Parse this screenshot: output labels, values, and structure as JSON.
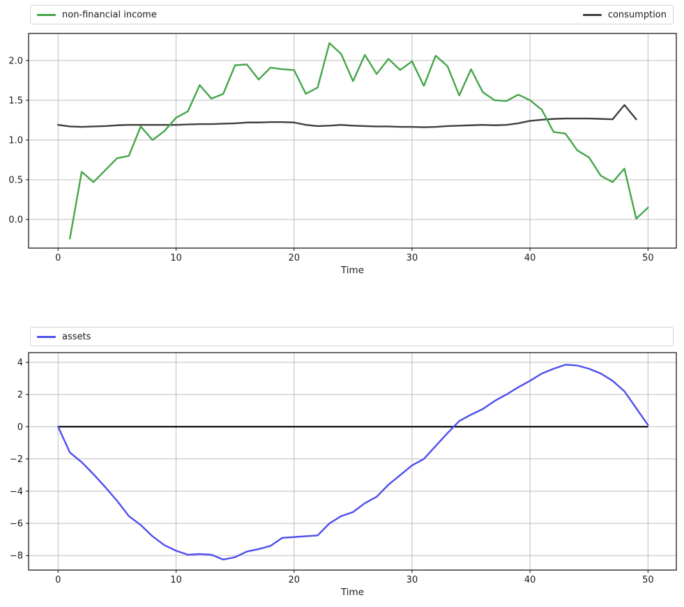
{
  "page": {
    "background": "#ffffff",
    "grid_color": "#bdbdbd",
    "spine_color": "#1a1a1a",
    "text_color": "#1a1a1a"
  },
  "legend_top": {
    "items": [
      {
        "label": "non-financial income",
        "series": "non-financial income"
      },
      {
        "label": "consumption",
        "series": "consumption"
      }
    ]
  },
  "legend_bottom": {
    "items": [
      {
        "label": "assets",
        "series": "assets"
      }
    ]
  },
  "chart_data": [
    {
      "type": "line",
      "title": "",
      "xlabel": "Time",
      "ylabel": "",
      "grid": true,
      "legend_position": "top expanded",
      "legend": [
        "non-financial income",
        "consumption"
      ],
      "xlim": [
        -2.5,
        52.4
      ],
      "ylim": [
        -0.36,
        2.34
      ],
      "xticks": {
        "values": [
          0,
          10,
          20,
          30,
          40,
          50
        ],
        "labels": [
          "0",
          "10",
          "20",
          "30",
          "40",
          "50"
        ]
      },
      "yticks": {
        "values": [
          0.0,
          0.5,
          1.0,
          1.5,
          2.0
        ],
        "labels": [
          "0.0",
          "0.5",
          "1.0",
          "1.5",
          "2.0"
        ]
      },
      "series": [
        {
          "name": "consumption",
          "color": "#3f3f3f",
          "x_start": 0,
          "x_step": 1,
          "values": [
            1.19,
            1.17,
            1.165,
            1.17,
            1.175,
            1.185,
            1.19,
            1.19,
            1.19,
            1.19,
            1.19,
            1.195,
            1.2,
            1.2,
            1.205,
            1.21,
            1.22,
            1.22,
            1.225,
            1.225,
            1.22,
            1.19,
            1.175,
            1.18,
            1.19,
            1.18,
            1.175,
            1.17,
            1.17,
            1.165,
            1.165,
            1.16,
            1.165,
            1.175,
            1.18,
            1.185,
            1.19,
            1.185,
            1.19,
            1.21,
            1.24,
            1.255,
            1.265,
            1.27,
            1.27,
            1.27,
            1.265,
            1.26,
            1.44,
            1.26
          ]
        },
        {
          "name": "non-financial income",
          "color": "#45a549",
          "x_start": 1,
          "x_step": 1,
          "values": [
            -0.24,
            0.6,
            0.47,
            0.62,
            0.77,
            0.8,
            1.17,
            1.0,
            1.11,
            1.28,
            1.36,
            1.69,
            1.52,
            1.58,
            1.94,
            1.95,
            1.76,
            1.91,
            1.89,
            1.88,
            1.58,
            1.66,
            2.22,
            2.08,
            1.74,
            2.07,
            1.83,
            2.02,
            1.88,
            1.99,
            1.68,
            2.06,
            1.93,
            1.56,
            1.89,
            1.6,
            1.5,
            1.49,
            1.57,
            1.5,
            1.38,
            1.1,
            1.08,
            0.87,
            0.78,
            0.55,
            0.47,
            0.64,
            0.01,
            0.15
          ]
        }
      ]
    },
    {
      "type": "line",
      "title": "",
      "xlabel": "Time",
      "ylabel": "",
      "grid": true,
      "legend_position": "top expanded",
      "legend": [
        "assets"
      ],
      "xlim": [
        -2.5,
        52.4
      ],
      "ylim": [
        -8.9,
        4.6
      ],
      "xticks": {
        "values": [
          0,
          10,
          20,
          30,
          40,
          50
        ],
        "labels": [
          "0",
          "10",
          "20",
          "30",
          "40",
          "50"
        ]
      },
      "yticks": {
        "values": [
          4,
          2,
          0,
          -2,
          -4,
          -6,
          -8
        ],
        "labels": [
          "4",
          "2",
          "0",
          "−2",
          "−4",
          "−6",
          "−8"
        ]
      },
      "reference_line": {
        "y": 0,
        "x_start": 0,
        "x_end": 50,
        "color": "#000000"
      },
      "series": [
        {
          "name": "assets",
          "color": "#4d4df0",
          "x_start": 0,
          "x_step": 1,
          "values": [
            0.0,
            -1.6,
            -2.2,
            -2.95,
            -3.75,
            -4.6,
            -5.55,
            -6.1,
            -6.8,
            -7.35,
            -7.7,
            -7.95,
            -7.9,
            -7.95,
            -8.25,
            -8.1,
            -7.75,
            -7.6,
            -7.4,
            -6.9,
            -6.85,
            -6.8,
            -6.75,
            -6.0,
            -5.55,
            -5.3,
            -4.75,
            -4.35,
            -3.6,
            -3.0,
            -2.4,
            -2.0,
            -1.2,
            -0.4,
            0.35,
            0.75,
            1.1,
            1.6,
            2.0,
            2.45,
            2.85,
            3.3,
            3.6,
            3.85,
            3.8,
            3.6,
            3.3,
            2.85,
            2.2,
            1.15,
            0.1
          ]
        }
      ]
    }
  ]
}
